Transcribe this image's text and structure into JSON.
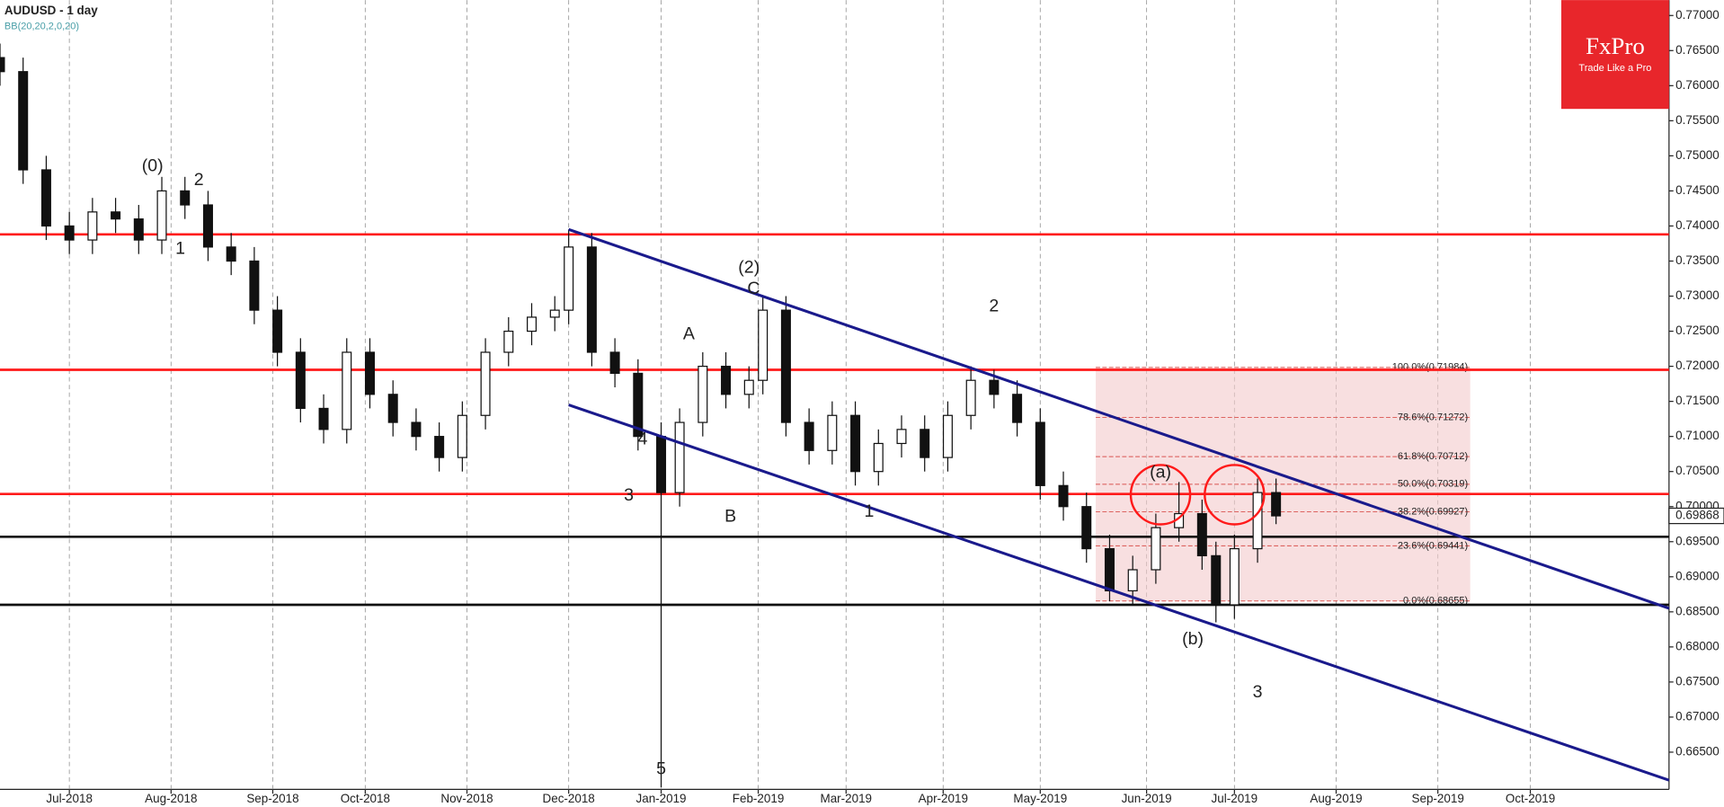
{
  "chart_data": {
    "type": "candlestick",
    "title": "AUDUSD - 1 day",
    "subtitle": "BB(20,20,2,0,20)",
    "logo": "FxPro",
    "tagline": "Trade Like a Pro",
    "xlim": [
      0,
      361
    ],
    "ylim": [
      0.6597,
      0.7722
    ],
    "xticks": [
      {
        "value": 15,
        "label": "Jul-2018"
      },
      {
        "value": 37,
        "label": "Aug-2018"
      },
      {
        "value": 59,
        "label": "Sep-2018"
      },
      {
        "value": 79,
        "label": "Oct-2018"
      },
      {
        "value": 101,
        "label": "Nov-2018"
      },
      {
        "value": 123,
        "label": "Dec-2018"
      },
      {
        "value": 143,
        "label": "Jan-2019"
      },
      {
        "value": 164,
        "label": "Feb-2019"
      },
      {
        "value": 183,
        "label": "Mar-2019"
      },
      {
        "value": 204,
        "label": "Apr-2019"
      },
      {
        "value": 225,
        "label": "May-2019"
      },
      {
        "value": 248,
        "label": "Jun-2019"
      },
      {
        "value": 267,
        "label": "Jul-2019"
      },
      {
        "value": 289,
        "label": "Aug-2019"
      },
      {
        "value": 311,
        "label": "Sep-2019"
      },
      {
        "value": 331,
        "label": "Oct-2019"
      }
    ],
    "yticks": [
      {
        "value": 0.665,
        "label": "0.66500"
      },
      {
        "value": 0.67,
        "label": "0.67000"
      },
      {
        "value": 0.675,
        "label": "0.67500"
      },
      {
        "value": 0.68,
        "label": "0.68000"
      },
      {
        "value": 0.685,
        "label": "0.68500"
      },
      {
        "value": 0.69,
        "label": "0.69000"
      },
      {
        "value": 0.695,
        "label": "0.69500"
      },
      {
        "value": 0.7,
        "label": "0.70000"
      },
      {
        "value": 0.705,
        "label": "0.70500"
      },
      {
        "value": 0.71,
        "label": "0.71000"
      },
      {
        "value": 0.715,
        "label": "0.71500"
      },
      {
        "value": 0.72,
        "label": "0.72000"
      },
      {
        "value": 0.725,
        "label": "0.72500"
      },
      {
        "value": 0.73,
        "label": "0.73000"
      },
      {
        "value": 0.735,
        "label": "0.73500"
      },
      {
        "value": 0.74,
        "label": "0.74000"
      },
      {
        "value": 0.745,
        "label": "0.74500"
      },
      {
        "value": 0.75,
        "label": "0.75000"
      },
      {
        "value": 0.755,
        "label": "0.75500"
      },
      {
        "value": 0.76,
        "label": "0.76000"
      },
      {
        "value": 0.765,
        "label": "0.76500"
      },
      {
        "value": 0.77,
        "label": "0.77000"
      }
    ],
    "x": [
      0,
      5,
      10,
      15,
      20,
      25,
      30,
      35,
      40,
      45,
      50,
      55,
      60,
      65,
      70,
      75,
      80,
      85,
      90,
      95,
      100,
      105,
      110,
      115,
      120,
      123,
      128,
      133,
      138,
      143,
      147,
      152,
      157,
      162,
      165,
      170,
      175,
      180,
      185,
      190,
      195,
      200,
      205,
      210,
      215,
      220,
      225,
      230,
      235,
      240,
      245,
      250,
      255,
      260,
      263,
      267,
      272,
      276
    ],
    "open": [
      0.764,
      0.762,
      0.748,
      0.74,
      0.738,
      0.742,
      0.741,
      0.738,
      0.745,
      0.743,
      0.737,
      0.735,
      0.728,
      0.722,
      0.714,
      0.711,
      0.722,
      0.716,
      0.712,
      0.71,
      0.707,
      0.713,
      0.722,
      0.725,
      0.727,
      0.728,
      0.737,
      0.722,
      0.719,
      0.71,
      0.702,
      0.712,
      0.72,
      0.716,
      0.718,
      0.728,
      0.712,
      0.708,
      0.713,
      0.705,
      0.709,
      0.711,
      0.707,
      0.713,
      0.718,
      0.716,
      0.712,
      0.703,
      0.7,
      0.694,
      0.688,
      0.691,
      0.697,
      0.699,
      0.693,
      0.686,
      0.694,
      0.702
    ],
    "high": [
      0.766,
      0.764,
      0.75,
      0.742,
      0.744,
      0.744,
      0.743,
      0.747,
      0.747,
      0.745,
      0.739,
      0.737,
      0.73,
      0.724,
      0.716,
      0.724,
      0.724,
      0.718,
      0.714,
      0.712,
      0.715,
      0.724,
      0.727,
      0.729,
      0.73,
      0.7395,
      0.739,
      0.724,
      0.721,
      0.712,
      0.714,
      0.722,
      0.722,
      0.72,
      0.73,
      0.73,
      0.714,
      0.715,
      0.715,
      0.711,
      0.713,
      0.713,
      0.715,
      0.72,
      0.7195,
      0.718,
      0.714,
      0.705,
      0.702,
      0.696,
      0.693,
      0.699,
      0.7035,
      0.701,
      0.695,
      0.696,
      0.704,
      0.704
    ],
    "low": [
      0.76,
      0.746,
      0.738,
      0.736,
      0.736,
      0.739,
      0.736,
      0.736,
      0.741,
      0.735,
      0.733,
      0.726,
      0.72,
      0.712,
      0.709,
      0.709,
      0.714,
      0.71,
      0.708,
      0.705,
      0.705,
      0.711,
      0.72,
      0.723,
      0.725,
      0.726,
      0.72,
      0.717,
      0.708,
      0.66,
      0.7,
      0.71,
      0.714,
      0.714,
      0.716,
      0.71,
      0.706,
      0.706,
      0.703,
      0.703,
      0.707,
      0.705,
      0.705,
      0.711,
      0.714,
      0.71,
      0.701,
      0.698,
      0.692,
      0.6865,
      0.686,
      0.689,
      0.695,
      0.691,
      0.6835,
      0.684,
      0.692,
      0.6975
    ],
    "close": [
      0.762,
      0.748,
      0.74,
      0.738,
      0.742,
      0.741,
      0.738,
      0.745,
      0.743,
      0.737,
      0.735,
      0.728,
      0.722,
      0.714,
      0.711,
      0.722,
      0.716,
      0.712,
      0.71,
      0.707,
      0.713,
      0.722,
      0.725,
      0.727,
      0.728,
      0.737,
      0.722,
      0.719,
      0.71,
      0.702,
      0.712,
      0.72,
      0.716,
      0.718,
      0.728,
      0.712,
      0.708,
      0.713,
      0.705,
      0.709,
      0.711,
      0.707,
      0.713,
      0.718,
      0.716,
      0.712,
      0.703,
      0.7,
      0.694,
      0.688,
      0.691,
      0.697,
      0.699,
      0.693,
      0.686,
      0.694,
      0.702,
      0.69868
    ],
    "last_price": 0.69868,
    "red_levels": [
      0.7388,
      0.7195,
      0.7018
    ],
    "black_levels": [
      0.6957,
      0.686
    ],
    "channel": [
      [
        [
          123,
          0.7395
        ],
        [
          361,
          0.6855
        ]
      ],
      [
        [
          123,
          0.7145
        ],
        [
          361,
          0.661
        ]
      ]
    ],
    "fib_box": {
      "x": [
        237,
        318
      ],
      "levels": [
        {
          "value": 0.71984,
          "label": "100.0%(0.71984)"
        },
        {
          "value": 0.71272,
          "label": "78.6%(0.71272)"
        },
        {
          "value": 0.70712,
          "label": "61.8%(0.70712)"
        },
        {
          "value": 0.70319,
          "label": "50.0%(0.70319)"
        },
        {
          "value": 0.69927,
          "label": "38.2%(0.69927)"
        },
        {
          "value": 0.69441,
          "label": "23.6%(0.69441)"
        },
        {
          "value": 0.68655,
          "label": "0.0%(0.68655)"
        }
      ]
    },
    "circles": [
      [
        251,
        0.7017
      ],
      [
        267,
        0.7017
      ]
    ],
    "annotations": [
      {
        "text": "(0)",
        "x": 33,
        "y": 0.7485
      },
      {
        "text": "2",
        "x": 43,
        "y": 0.7465
      },
      {
        "text": "1",
        "x": 39,
        "y": 0.7367
      },
      {
        "text": "4",
        "x": 139,
        "y": 0.7095
      },
      {
        "text": "3",
        "x": 136,
        "y": 0.7015
      },
      {
        "text": "5",
        "x": 143,
        "y": 0.6625
      },
      {
        "text": "A",
        "x": 149,
        "y": 0.7245
      },
      {
        "text": "B",
        "x": 158,
        "y": 0.6985
      },
      {
        "text": "(2)",
        "x": 162,
        "y": 0.734
      },
      {
        "text": "C",
        "x": 163,
        "y": 0.731
      },
      {
        "text": "1",
        "x": 188,
        "y": 0.6992
      },
      {
        "text": "2",
        "x": 215,
        "y": 0.7285
      },
      {
        "text": "(a)",
        "x": 251,
        "y": 0.7048
      },
      {
        "text": "(b)",
        "x": 258,
        "y": 0.681
      },
      {
        "text": "3",
        "x": 272,
        "y": 0.6735
      }
    ]
  }
}
